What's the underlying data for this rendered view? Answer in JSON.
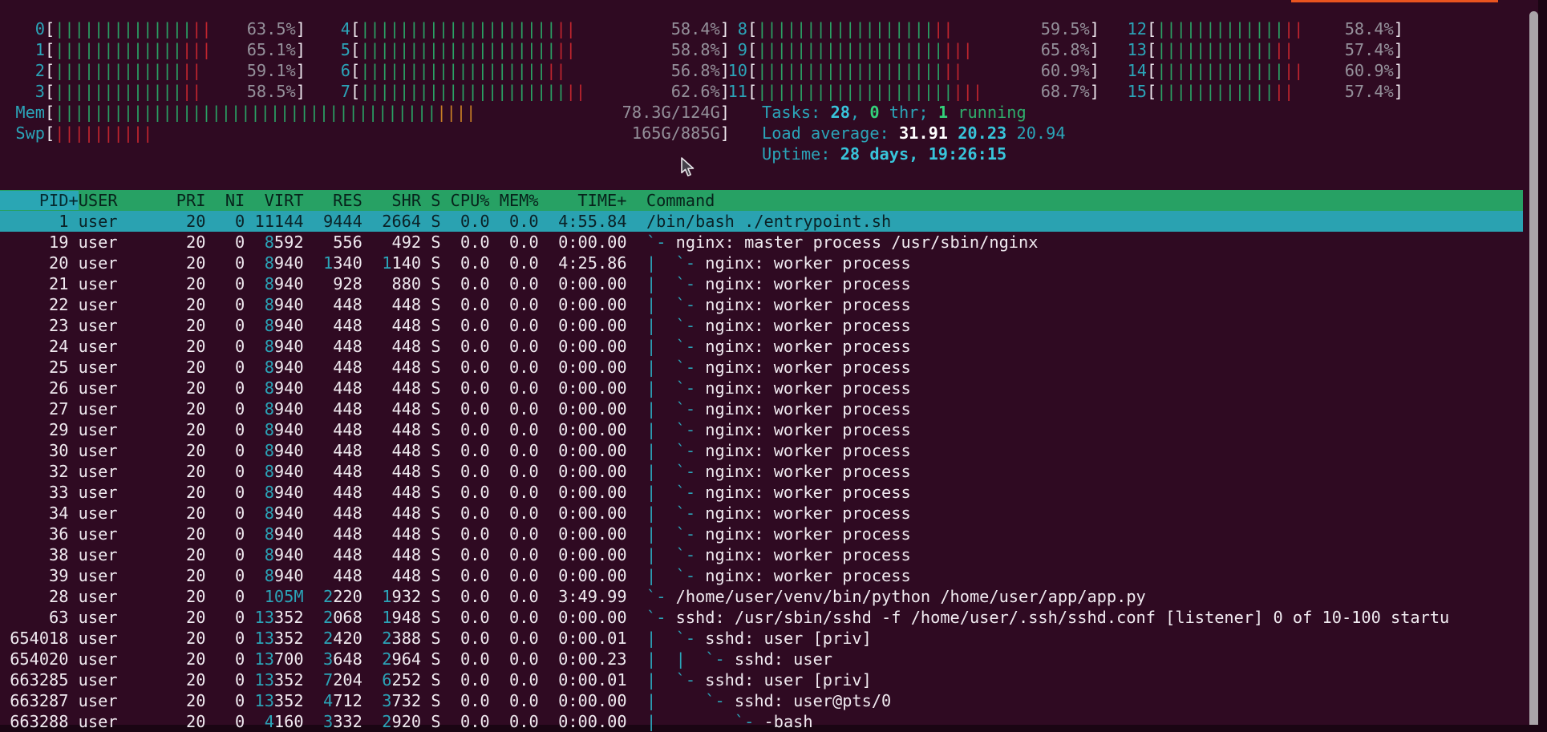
{
  "terminal": {
    "top_strip": {
      "color": "#e9541f"
    },
    "meters": {
      "cpu_columns": [
        [
          {
            "id": "0",
            "pct": 63.5
          },
          {
            "id": "1",
            "pct": 65.1
          },
          {
            "id": "2",
            "pct": 59.1
          },
          {
            "id": "3",
            "pct": 58.5
          }
        ],
        [
          {
            "id": "4",
            "pct": 58.4
          },
          {
            "id": "5",
            "pct": 58.8
          },
          {
            "id": "6",
            "pct": 56.8
          },
          {
            "id": "7",
            "pct": 62.6
          }
        ],
        [
          {
            "id": "8",
            "pct": 59.5
          },
          {
            "id": "9",
            "pct": 65.8
          },
          {
            "id": "10",
            "pct": 60.9
          },
          {
            "id": "11",
            "pct": 68.7
          }
        ],
        [
          {
            "id": "12",
            "pct": 58.4
          },
          {
            "id": "13",
            "pct": 57.4
          },
          {
            "id": "14",
            "pct": 60.9
          },
          {
            "id": "15",
            "pct": 57.4
          }
        ]
      ],
      "mem": {
        "label": "Mem",
        "pct": 63.1,
        "text": "78.3G/124G"
      },
      "swp": {
        "label": "Swp",
        "pct": 18.6,
        "text": "165G/885G"
      }
    },
    "status": {
      "tasks": [
        [
          "Tasks: ",
          "c"
        ],
        [
          "28",
          "cb"
        ],
        [
          ", ",
          "c"
        ],
        [
          "0",
          "gb"
        ],
        [
          " thr; ",
          "c"
        ],
        [
          "1",
          "gb"
        ],
        [
          " running",
          "g"
        ]
      ],
      "load": [
        [
          "Load average: ",
          "c"
        ],
        [
          "31.91 ",
          "wb"
        ],
        [
          "20.23 ",
          "cb"
        ],
        [
          "20.94",
          "c"
        ]
      ],
      "uptime": [
        [
          "Uptime: ",
          "c"
        ],
        [
          "28 days, 19:26:15",
          "cb"
        ]
      ]
    },
    "table": {
      "header": {
        "sort_col": "    PID+",
        "rest": "USER      PRI  NI  VIRT   RES   SHR S CPU% MEM%    TIME+  Command"
      },
      "rows": [
        {
          "pid": "1",
          "user": "user",
          "pri": "20",
          "ni": "0",
          "virt": [
            "",
            "11144"
          ],
          "res": [
            "",
            "9444"
          ],
          "shr": [
            "",
            "2664"
          ],
          "s": "S",
          "cpu": "0.0",
          "mem": "0.0",
          "time": "4:55.84",
          "tree": "",
          "cmd": "/bin/bash ./entrypoint.sh",
          "selected": true
        },
        {
          "pid": "19",
          "user": "user",
          "pri": "20",
          "ni": "0",
          "virt": [
            "8",
            "592"
          ],
          "res": [
            "",
            "556"
          ],
          "shr": [
            "",
            "492"
          ],
          "s": "S",
          "cpu": "0.0",
          "mem": "0.0",
          "time": "0:00.00",
          "tree": "`- ",
          "cmd": "nginx: master process /usr/sbin/nginx"
        },
        {
          "pid": "20",
          "user": "user",
          "pri": "20",
          "ni": "0",
          "virt": [
            "8",
            "940"
          ],
          "res": [
            "1",
            "340"
          ],
          "shr": [
            "1",
            "140"
          ],
          "s": "S",
          "cpu": "0.0",
          "mem": "0.0",
          "time": "4:25.86",
          "tree": "|  `- ",
          "cmd": "nginx: worker process"
        },
        {
          "pid": "21",
          "user": "user",
          "pri": "20",
          "ni": "0",
          "virt": [
            "8",
            "940"
          ],
          "res": [
            "",
            "928"
          ],
          "shr": [
            "",
            "880"
          ],
          "s": "S",
          "cpu": "0.0",
          "mem": "0.0",
          "time": "0:00.00",
          "tree": "|  `- ",
          "cmd": "nginx: worker process"
        },
        {
          "pid": "22",
          "user": "user",
          "pri": "20",
          "ni": "0",
          "virt": [
            "8",
            "940"
          ],
          "res": [
            "",
            "448"
          ],
          "shr": [
            "",
            "448"
          ],
          "s": "S",
          "cpu": "0.0",
          "mem": "0.0",
          "time": "0:00.00",
          "tree": "|  `- ",
          "cmd": "nginx: worker process"
        },
        {
          "pid": "23",
          "user": "user",
          "pri": "20",
          "ni": "0",
          "virt": [
            "8",
            "940"
          ],
          "res": [
            "",
            "448"
          ],
          "shr": [
            "",
            "448"
          ],
          "s": "S",
          "cpu": "0.0",
          "mem": "0.0",
          "time": "0:00.00",
          "tree": "|  `- ",
          "cmd": "nginx: worker process"
        },
        {
          "pid": "24",
          "user": "user",
          "pri": "20",
          "ni": "0",
          "virt": [
            "8",
            "940"
          ],
          "res": [
            "",
            "448"
          ],
          "shr": [
            "",
            "448"
          ],
          "s": "S",
          "cpu": "0.0",
          "mem": "0.0",
          "time": "0:00.00",
          "tree": "|  `- ",
          "cmd": "nginx: worker process"
        },
        {
          "pid": "25",
          "user": "user",
          "pri": "20",
          "ni": "0",
          "virt": [
            "8",
            "940"
          ],
          "res": [
            "",
            "448"
          ],
          "shr": [
            "",
            "448"
          ],
          "s": "S",
          "cpu": "0.0",
          "mem": "0.0",
          "time": "0:00.00",
          "tree": "|  `- ",
          "cmd": "nginx: worker process"
        },
        {
          "pid": "26",
          "user": "user",
          "pri": "20",
          "ni": "0",
          "virt": [
            "8",
            "940"
          ],
          "res": [
            "",
            "448"
          ],
          "shr": [
            "",
            "448"
          ],
          "s": "S",
          "cpu": "0.0",
          "mem": "0.0",
          "time": "0:00.00",
          "tree": "|  `- ",
          "cmd": "nginx: worker process"
        },
        {
          "pid": "27",
          "user": "user",
          "pri": "20",
          "ni": "0",
          "virt": [
            "8",
            "940"
          ],
          "res": [
            "",
            "448"
          ],
          "shr": [
            "",
            "448"
          ],
          "s": "S",
          "cpu": "0.0",
          "mem": "0.0",
          "time": "0:00.00",
          "tree": "|  `- ",
          "cmd": "nginx: worker process"
        },
        {
          "pid": "29",
          "user": "user",
          "pri": "20",
          "ni": "0",
          "virt": [
            "8",
            "940"
          ],
          "res": [
            "",
            "448"
          ],
          "shr": [
            "",
            "448"
          ],
          "s": "S",
          "cpu": "0.0",
          "mem": "0.0",
          "time": "0:00.00",
          "tree": "|  `- ",
          "cmd": "nginx: worker process"
        },
        {
          "pid": "30",
          "user": "user",
          "pri": "20",
          "ni": "0",
          "virt": [
            "8",
            "940"
          ],
          "res": [
            "",
            "448"
          ],
          "shr": [
            "",
            "448"
          ],
          "s": "S",
          "cpu": "0.0",
          "mem": "0.0",
          "time": "0:00.00",
          "tree": "|  `- ",
          "cmd": "nginx: worker process"
        },
        {
          "pid": "32",
          "user": "user",
          "pri": "20",
          "ni": "0",
          "virt": [
            "8",
            "940"
          ],
          "res": [
            "",
            "448"
          ],
          "shr": [
            "",
            "448"
          ],
          "s": "S",
          "cpu": "0.0",
          "mem": "0.0",
          "time": "0:00.00",
          "tree": "|  `- ",
          "cmd": "nginx: worker process"
        },
        {
          "pid": "33",
          "user": "user",
          "pri": "20",
          "ni": "0",
          "virt": [
            "8",
            "940"
          ],
          "res": [
            "",
            "448"
          ],
          "shr": [
            "",
            "448"
          ],
          "s": "S",
          "cpu": "0.0",
          "mem": "0.0",
          "time": "0:00.00",
          "tree": "|  `- ",
          "cmd": "nginx: worker process"
        },
        {
          "pid": "34",
          "user": "user",
          "pri": "20",
          "ni": "0",
          "virt": [
            "8",
            "940"
          ],
          "res": [
            "",
            "448"
          ],
          "shr": [
            "",
            "448"
          ],
          "s": "S",
          "cpu": "0.0",
          "mem": "0.0",
          "time": "0:00.00",
          "tree": "|  `- ",
          "cmd": "nginx: worker process"
        },
        {
          "pid": "36",
          "user": "user",
          "pri": "20",
          "ni": "0",
          "virt": [
            "8",
            "940"
          ],
          "res": [
            "",
            "448"
          ],
          "shr": [
            "",
            "448"
          ],
          "s": "S",
          "cpu": "0.0",
          "mem": "0.0",
          "time": "0:00.00",
          "tree": "|  `- ",
          "cmd": "nginx: worker process"
        },
        {
          "pid": "38",
          "user": "user",
          "pri": "20",
          "ni": "0",
          "virt": [
            "8",
            "940"
          ],
          "res": [
            "",
            "448"
          ],
          "shr": [
            "",
            "448"
          ],
          "s": "S",
          "cpu": "0.0",
          "mem": "0.0",
          "time": "0:00.00",
          "tree": "|  `- ",
          "cmd": "nginx: worker process"
        },
        {
          "pid": "39",
          "user": "user",
          "pri": "20",
          "ni": "0",
          "virt": [
            "8",
            "940"
          ],
          "res": [
            "",
            "448"
          ],
          "shr": [
            "",
            "448"
          ],
          "s": "S",
          "cpu": "0.0",
          "mem": "0.0",
          "time": "0:00.00",
          "tree": "|  `- ",
          "cmd": "nginx: worker process"
        },
        {
          "pid": "28",
          "user": "user",
          "pri": "20",
          "ni": "0",
          "virt": [
            "105M",
            ""
          ],
          "res": [
            "2",
            "220"
          ],
          "shr": [
            "1",
            "932"
          ],
          "s": "S",
          "cpu": "0.0",
          "mem": "0.0",
          "time": "3:49.99",
          "tree": "`- ",
          "cmd": "/home/user/venv/bin/python /home/user/app/app.py"
        },
        {
          "pid": "63",
          "user": "user",
          "pri": "20",
          "ni": "0",
          "virt": [
            "13",
            "352"
          ],
          "res": [
            "2",
            "068"
          ],
          "shr": [
            "1",
            "948"
          ],
          "s": "S",
          "cpu": "0.0",
          "mem": "0.0",
          "time": "0:00.00",
          "tree": "`- ",
          "cmd": "sshd: /usr/sbin/sshd -f /home/user/.ssh/sshd.conf [listener] 0 of 10-100 startu"
        },
        {
          "pid": "654018",
          "user": "user",
          "pri": "20",
          "ni": "0",
          "virt": [
            "13",
            "352"
          ],
          "res": [
            "2",
            "420"
          ],
          "shr": [
            "2",
            "388"
          ],
          "s": "S",
          "cpu": "0.0",
          "mem": "0.0",
          "time": "0:00.01",
          "tree": "|  `- ",
          "cmd": "sshd: user [priv]"
        },
        {
          "pid": "654020",
          "user": "user",
          "pri": "20",
          "ni": "0",
          "virt": [
            "13",
            "700"
          ],
          "res": [
            "3",
            "648"
          ],
          "shr": [
            "2",
            "964"
          ],
          "s": "S",
          "cpu": "0.0",
          "mem": "0.0",
          "time": "0:00.23",
          "tree": "|  |  `- ",
          "cmd": "sshd: user"
        },
        {
          "pid": "663285",
          "user": "user",
          "pri": "20",
          "ni": "0",
          "virt": [
            "13",
            "352"
          ],
          "res": [
            "7",
            "204"
          ],
          "shr": [
            "6",
            "252"
          ],
          "s": "S",
          "cpu": "0.0",
          "mem": "0.0",
          "time": "0:00.01",
          "tree": "|  `- ",
          "cmd": "sshd: user [priv]"
        },
        {
          "pid": "663287",
          "user": "user",
          "pri": "20",
          "ni": "0",
          "virt": [
            "13",
            "352"
          ],
          "res": [
            "4",
            "712"
          ],
          "shr": [
            "3",
            "732"
          ],
          "s": "S",
          "cpu": "0.0",
          "mem": "0.0",
          "time": "0:00.00",
          "tree": "|     `- ",
          "cmd": "sshd: user@pts/0"
        },
        {
          "pid": "663288",
          "user": "user",
          "pri": "20",
          "ni": "0",
          "virt": [
            "4",
            "160"
          ],
          "res": [
            "3",
            "332"
          ],
          "shr": [
            "2",
            "920"
          ],
          "s": "S",
          "cpu": "0.0",
          "mem": "0.0",
          "time": "0:00.00",
          "tree": "|        `- ",
          "cmd": "-bash"
        }
      ]
    }
  }
}
